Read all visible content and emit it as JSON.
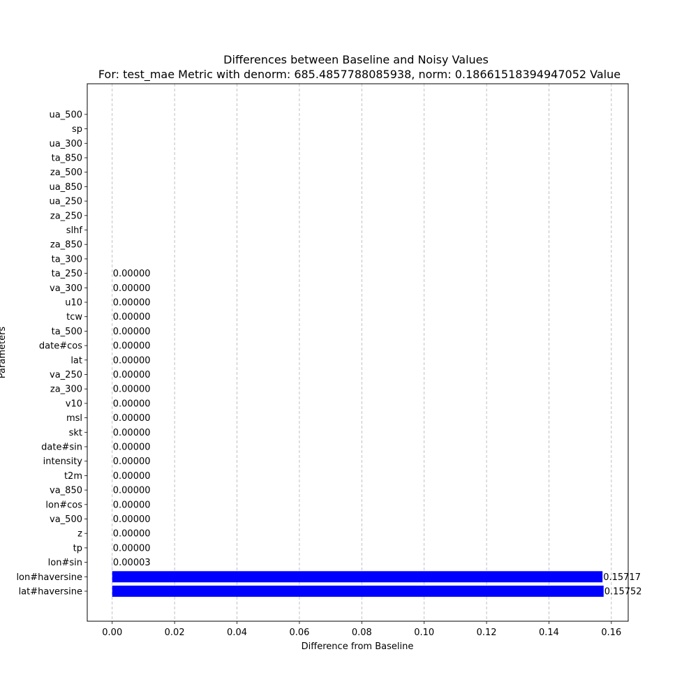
{
  "chart_data": {
    "type": "bar",
    "orientation": "horizontal",
    "title": "Differences between Baseline and Noisy Values",
    "subtitle": "For: test_mae Metric with denorm: 685.4857788085938, norm: 0.18661518394947052 Value",
    "xlabel": "Difference from Baseline",
    "ylabel": "Parameters",
    "xlim": [
      -0.008,
      0.1654
    ],
    "x_ticks": [
      0.0,
      0.02,
      0.04,
      0.06,
      0.08,
      0.1,
      0.12,
      0.14,
      0.16
    ],
    "x_tick_labels": [
      "0.00",
      "0.02",
      "0.04",
      "0.06",
      "0.08",
      "0.10",
      "0.12",
      "0.14",
      "0.16"
    ],
    "grid": "x",
    "bar_color": "#0000ff",
    "categories": [
      "lat#haversine",
      "lon#haversine",
      "lon#sin",
      "tp",
      "z",
      "va_500",
      "lon#cos",
      "va_850",
      "t2m",
      "intensity",
      "date#sin",
      "skt",
      "msl",
      "v10",
      "za_300",
      "va_250",
      "lat",
      "date#cos",
      "ta_500",
      "tcw",
      "u10",
      "va_300",
      "ta_250",
      "ta_300",
      "za_850",
      "slhf",
      "za_250",
      "ua_250",
      "ua_850",
      "za_500",
      "ta_850",
      "ua_300",
      "sp",
      "ua_500"
    ],
    "values": [
      0.15752,
      0.15717,
      3e-05,
      0.0,
      0.0,
      0.0,
      0.0,
      0.0,
      0.0,
      0.0,
      0.0,
      0.0,
      0.0,
      0.0,
      0.0,
      0.0,
      0.0,
      0.0,
      0.0,
      0.0,
      0.0,
      0.0,
      0.0,
      0.0,
      0.0,
      0.0,
      0.0,
      0.0,
      0.0,
      0.0,
      0.0,
      0.0,
      0.0,
      0.0
    ],
    "data_labels": [
      "0.15752",
      "0.15717",
      "0.00003",
      "0.00000",
      "0.00000",
      "0.00000",
      "0.00000",
      "0.00000",
      "0.00000",
      "0.00000",
      "0.00000",
      "0.00000",
      "0.00000",
      "0.00000",
      "0.00000",
      "0.00000",
      "0.00000",
      "0.00000",
      "0.00000",
      "0.00000",
      "0.00000",
      "0.00000",
      "0.00000",
      "",
      "",
      "",
      "",
      "",
      "",
      "",
      "",
      "",
      "",
      ""
    ]
  }
}
